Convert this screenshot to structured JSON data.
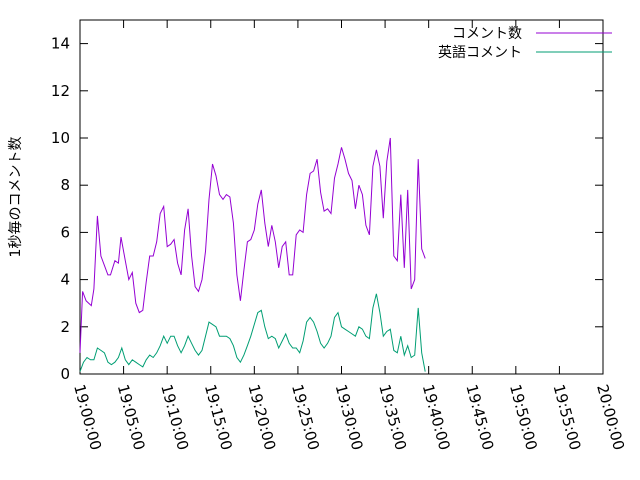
{
  "chart_data": {
    "type": "line",
    "title": "",
    "xlabel": "",
    "ylabel": "1秒毎のコメント数",
    "ylim": [
      0,
      15
    ],
    "yticks": [
      "0",
      "2",
      "4",
      "6",
      "8",
      "10",
      "12",
      "14"
    ],
    "xticks": [
      "19:00:00",
      "19:05:00",
      "19:10:00",
      "19:15:00",
      "19:20:00",
      "19:25:00",
      "19:30:00",
      "19:35:00",
      "19:40:00",
      "19:45:00",
      "19:50:00",
      "19:55:00",
      "20:00:00"
    ],
    "xlim_minutes": [
      0,
      60
    ],
    "grid": false,
    "legend_position": "top-right",
    "series": [
      {
        "name": "コメント数",
        "color": "#9400d3",
        "points": [
          [
            0.0,
            0.9
          ],
          [
            0.3,
            3.5
          ],
          [
            0.7,
            3.1
          ],
          [
            1.0,
            3.0
          ],
          [
            1.3,
            2.9
          ],
          [
            1.6,
            3.6
          ],
          [
            2.0,
            6.7
          ],
          [
            2.4,
            5.0
          ],
          [
            2.8,
            4.6
          ],
          [
            3.2,
            4.2
          ],
          [
            3.5,
            4.2
          ],
          [
            4.0,
            4.8
          ],
          [
            4.4,
            4.7
          ],
          [
            4.7,
            5.8
          ],
          [
            5.2,
            4.8
          ],
          [
            5.6,
            4.0
          ],
          [
            6.0,
            4.3
          ],
          [
            6.4,
            3.0
          ],
          [
            6.8,
            2.6
          ],
          [
            7.2,
            2.7
          ],
          [
            7.6,
            3.9
          ],
          [
            8.0,
            5.0
          ],
          [
            8.4,
            5.0
          ],
          [
            8.8,
            5.6
          ],
          [
            9.2,
            6.8
          ],
          [
            9.6,
            7.1
          ],
          [
            10.0,
            5.4
          ],
          [
            10.4,
            5.5
          ],
          [
            10.8,
            5.7
          ],
          [
            11.2,
            4.7
          ],
          [
            11.6,
            4.2
          ],
          [
            12.0,
            6.1
          ],
          [
            12.4,
            7.0
          ],
          [
            12.8,
            5.0
          ],
          [
            13.2,
            3.7
          ],
          [
            13.6,
            3.5
          ],
          [
            14.0,
            4.0
          ],
          [
            14.4,
            5.2
          ],
          [
            14.8,
            7.4
          ],
          [
            15.2,
            8.9
          ],
          [
            15.6,
            8.4
          ],
          [
            16.0,
            7.6
          ],
          [
            16.4,
            7.4
          ],
          [
            16.8,
            7.6
          ],
          [
            17.2,
            7.5
          ],
          [
            17.6,
            6.4
          ],
          [
            18.0,
            4.2
          ],
          [
            18.4,
            3.1
          ],
          [
            18.8,
            4.4
          ],
          [
            19.2,
            5.6
          ],
          [
            19.6,
            5.7
          ],
          [
            20.0,
            6.1
          ],
          [
            20.4,
            7.2
          ],
          [
            20.8,
            7.8
          ],
          [
            21.2,
            6.4
          ],
          [
            21.6,
            5.4
          ],
          [
            22.0,
            6.3
          ],
          [
            22.4,
            5.6
          ],
          [
            22.8,
            4.5
          ],
          [
            23.2,
            5.4
          ],
          [
            23.6,
            5.6
          ],
          [
            24.0,
            4.2
          ],
          [
            24.4,
            4.2
          ],
          [
            24.8,
            5.9
          ],
          [
            25.2,
            6.1
          ],
          [
            25.6,
            6.0
          ],
          [
            26.0,
            7.6
          ],
          [
            26.4,
            8.5
          ],
          [
            26.8,
            8.6
          ],
          [
            27.2,
            9.1
          ],
          [
            27.6,
            7.7
          ],
          [
            28.0,
            6.9
          ],
          [
            28.4,
            7.0
          ],
          [
            28.8,
            6.8
          ],
          [
            29.2,
            8.3
          ],
          [
            29.6,
            8.9
          ],
          [
            30.0,
            9.6
          ],
          [
            30.4,
            9.1
          ],
          [
            30.8,
            8.5
          ],
          [
            31.2,
            8.2
          ],
          [
            31.6,
            7.0
          ],
          [
            32.0,
            8.0
          ],
          [
            32.4,
            7.6
          ],
          [
            32.8,
            6.3
          ],
          [
            33.2,
            5.9
          ],
          [
            33.6,
            8.8
          ],
          [
            34.0,
            9.5
          ],
          [
            34.4,
            8.8
          ],
          [
            34.8,
            6.6
          ],
          [
            35.2,
            9.0
          ],
          [
            35.6,
            10.0
          ],
          [
            36.0,
            5.0
          ],
          [
            36.4,
            4.8
          ],
          [
            36.8,
            7.6
          ],
          [
            37.2,
            4.5
          ],
          [
            37.6,
            7.8
          ],
          [
            38.0,
            3.6
          ],
          [
            38.4,
            4.0
          ],
          [
            38.8,
            9.1
          ],
          [
            39.2,
            5.3
          ],
          [
            39.6,
            4.9
          ]
        ]
      },
      {
        "name": "英語コメント",
        "color": "#009e73",
        "points": [
          [
            0.0,
            0.1
          ],
          [
            0.4,
            0.5
          ],
          [
            0.8,
            0.7
          ],
          [
            1.2,
            0.6
          ],
          [
            1.6,
            0.6
          ],
          [
            2.0,
            1.1
          ],
          [
            2.4,
            1.0
          ],
          [
            2.8,
            0.9
          ],
          [
            3.2,
            0.5
          ],
          [
            3.6,
            0.4
          ],
          [
            4.0,
            0.5
          ],
          [
            4.4,
            0.7
          ],
          [
            4.8,
            1.1
          ],
          [
            5.2,
            0.6
          ],
          [
            5.6,
            0.4
          ],
          [
            6.0,
            0.6
          ],
          [
            6.4,
            0.5
          ],
          [
            6.8,
            0.4
          ],
          [
            7.2,
            0.3
          ],
          [
            7.6,
            0.6
          ],
          [
            8.0,
            0.8
          ],
          [
            8.4,
            0.7
          ],
          [
            8.8,
            0.9
          ],
          [
            9.2,
            1.2
          ],
          [
            9.6,
            1.6
          ],
          [
            10.0,
            1.3
          ],
          [
            10.4,
            1.6
          ],
          [
            10.8,
            1.6
          ],
          [
            11.2,
            1.2
          ],
          [
            11.6,
            0.9
          ],
          [
            12.0,
            1.2
          ],
          [
            12.4,
            1.6
          ],
          [
            12.8,
            1.3
          ],
          [
            13.2,
            1.0
          ],
          [
            13.6,
            0.8
          ],
          [
            14.0,
            1.0
          ],
          [
            14.4,
            1.6
          ],
          [
            14.8,
            2.2
          ],
          [
            15.2,
            2.1
          ],
          [
            15.6,
            2.0
          ],
          [
            16.0,
            1.6
          ],
          [
            16.4,
            1.6
          ],
          [
            16.8,
            1.6
          ],
          [
            17.2,
            1.5
          ],
          [
            17.6,
            1.2
          ],
          [
            18.0,
            0.7
          ],
          [
            18.4,
            0.5
          ],
          [
            18.8,
            0.8
          ],
          [
            19.2,
            1.2
          ],
          [
            19.6,
            1.6
          ],
          [
            20.0,
            2.1
          ],
          [
            20.4,
            2.6
          ],
          [
            20.8,
            2.7
          ],
          [
            21.2,
            2.0
          ],
          [
            21.6,
            1.5
          ],
          [
            22.0,
            1.6
          ],
          [
            22.4,
            1.5
          ],
          [
            22.8,
            1.1
          ],
          [
            23.2,
            1.4
          ],
          [
            23.6,
            1.7
          ],
          [
            24.0,
            1.3
          ],
          [
            24.4,
            1.1
          ],
          [
            24.8,
            1.1
          ],
          [
            25.2,
            0.9
          ],
          [
            25.6,
            1.4
          ],
          [
            26.0,
            2.2
          ],
          [
            26.4,
            2.4
          ],
          [
            26.8,
            2.2
          ],
          [
            27.2,
            1.8
          ],
          [
            27.6,
            1.3
          ],
          [
            28.0,
            1.1
          ],
          [
            28.4,
            1.3
          ],
          [
            28.8,
            1.6
          ],
          [
            29.2,
            2.4
          ],
          [
            29.6,
            2.6
          ],
          [
            30.0,
            2.0
          ],
          [
            30.4,
            1.9
          ],
          [
            30.8,
            1.8
          ],
          [
            31.2,
            1.7
          ],
          [
            31.6,
            1.6
          ],
          [
            32.0,
            2.0
          ],
          [
            32.4,
            1.9
          ],
          [
            32.8,
            1.6
          ],
          [
            33.2,
            1.5
          ],
          [
            33.6,
            2.8
          ],
          [
            34.0,
            3.4
          ],
          [
            34.4,
            2.6
          ],
          [
            34.8,
            1.6
          ],
          [
            35.2,
            1.8
          ],
          [
            35.6,
            1.9
          ],
          [
            36.0,
            1.0
          ],
          [
            36.4,
            0.9
          ],
          [
            36.8,
            1.6
          ],
          [
            37.2,
            0.8
          ],
          [
            37.6,
            1.2
          ],
          [
            38.0,
            0.7
          ],
          [
            38.4,
            0.8
          ],
          [
            38.8,
            2.8
          ],
          [
            39.2,
            0.9
          ],
          [
            39.6,
            0.1
          ]
        ]
      }
    ]
  }
}
